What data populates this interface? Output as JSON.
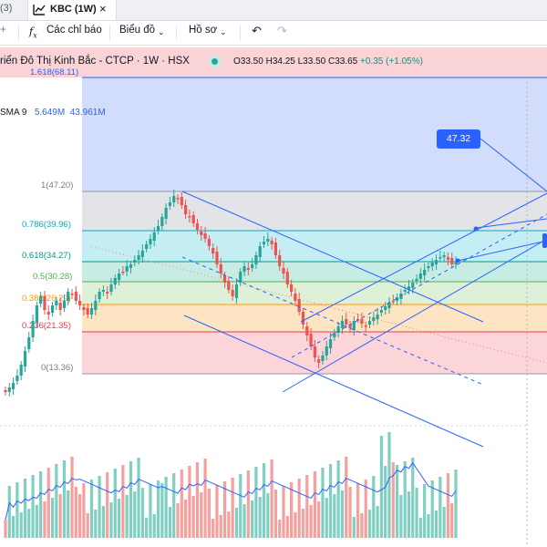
{
  "tabs": {
    "previous_label": "(3)",
    "active_label": "KBC (1W)",
    "close_icon": "×"
  },
  "toolbar": {
    "indicators_label": "Các chỉ báo",
    "chart_type_label": "Biểu đồ",
    "profile_label": "Hồ sơ"
  },
  "symbol": {
    "title": "riển Đô Thị Kinh Bắc - CTCP · 1W · HSX",
    "open": "O33.50",
    "high": "H34.25",
    "low": "L33.50",
    "close": "C33.65",
    "change": "+0.35 (+1.05%)"
  },
  "indicator": {
    "name": "SMA 9",
    "value1": "5.649M",
    "value2": "43.961M"
  },
  "fib_levels": [
    {
      "label": "1.618(68.11)",
      "color": "#2962ff"
    },
    {
      "label": "1(47.20)",
      "color": "#787b86"
    },
    {
      "label": "0.786(39.96)",
      "color": "#00acc1"
    },
    {
      "label": "0.618(34.27)",
      "color": "#089981"
    },
    {
      "label": "0.5(30.28)",
      "color": "#4caf50"
    },
    {
      "label": "0.382(26.29)",
      "color": "#ff9800"
    },
    {
      "label": "0.236(21.35)",
      "color": "#f23645"
    },
    {
      "label": "0(13.36)",
      "color": "#787b86"
    }
  ],
  "price_label": "47.32",
  "colors": {
    "up": "#26a69a",
    "down": "#ef5350",
    "drawing": "#2962ff",
    "volume_up": "#7fcfc2",
    "volume_down": "#f4a19e"
  }
}
